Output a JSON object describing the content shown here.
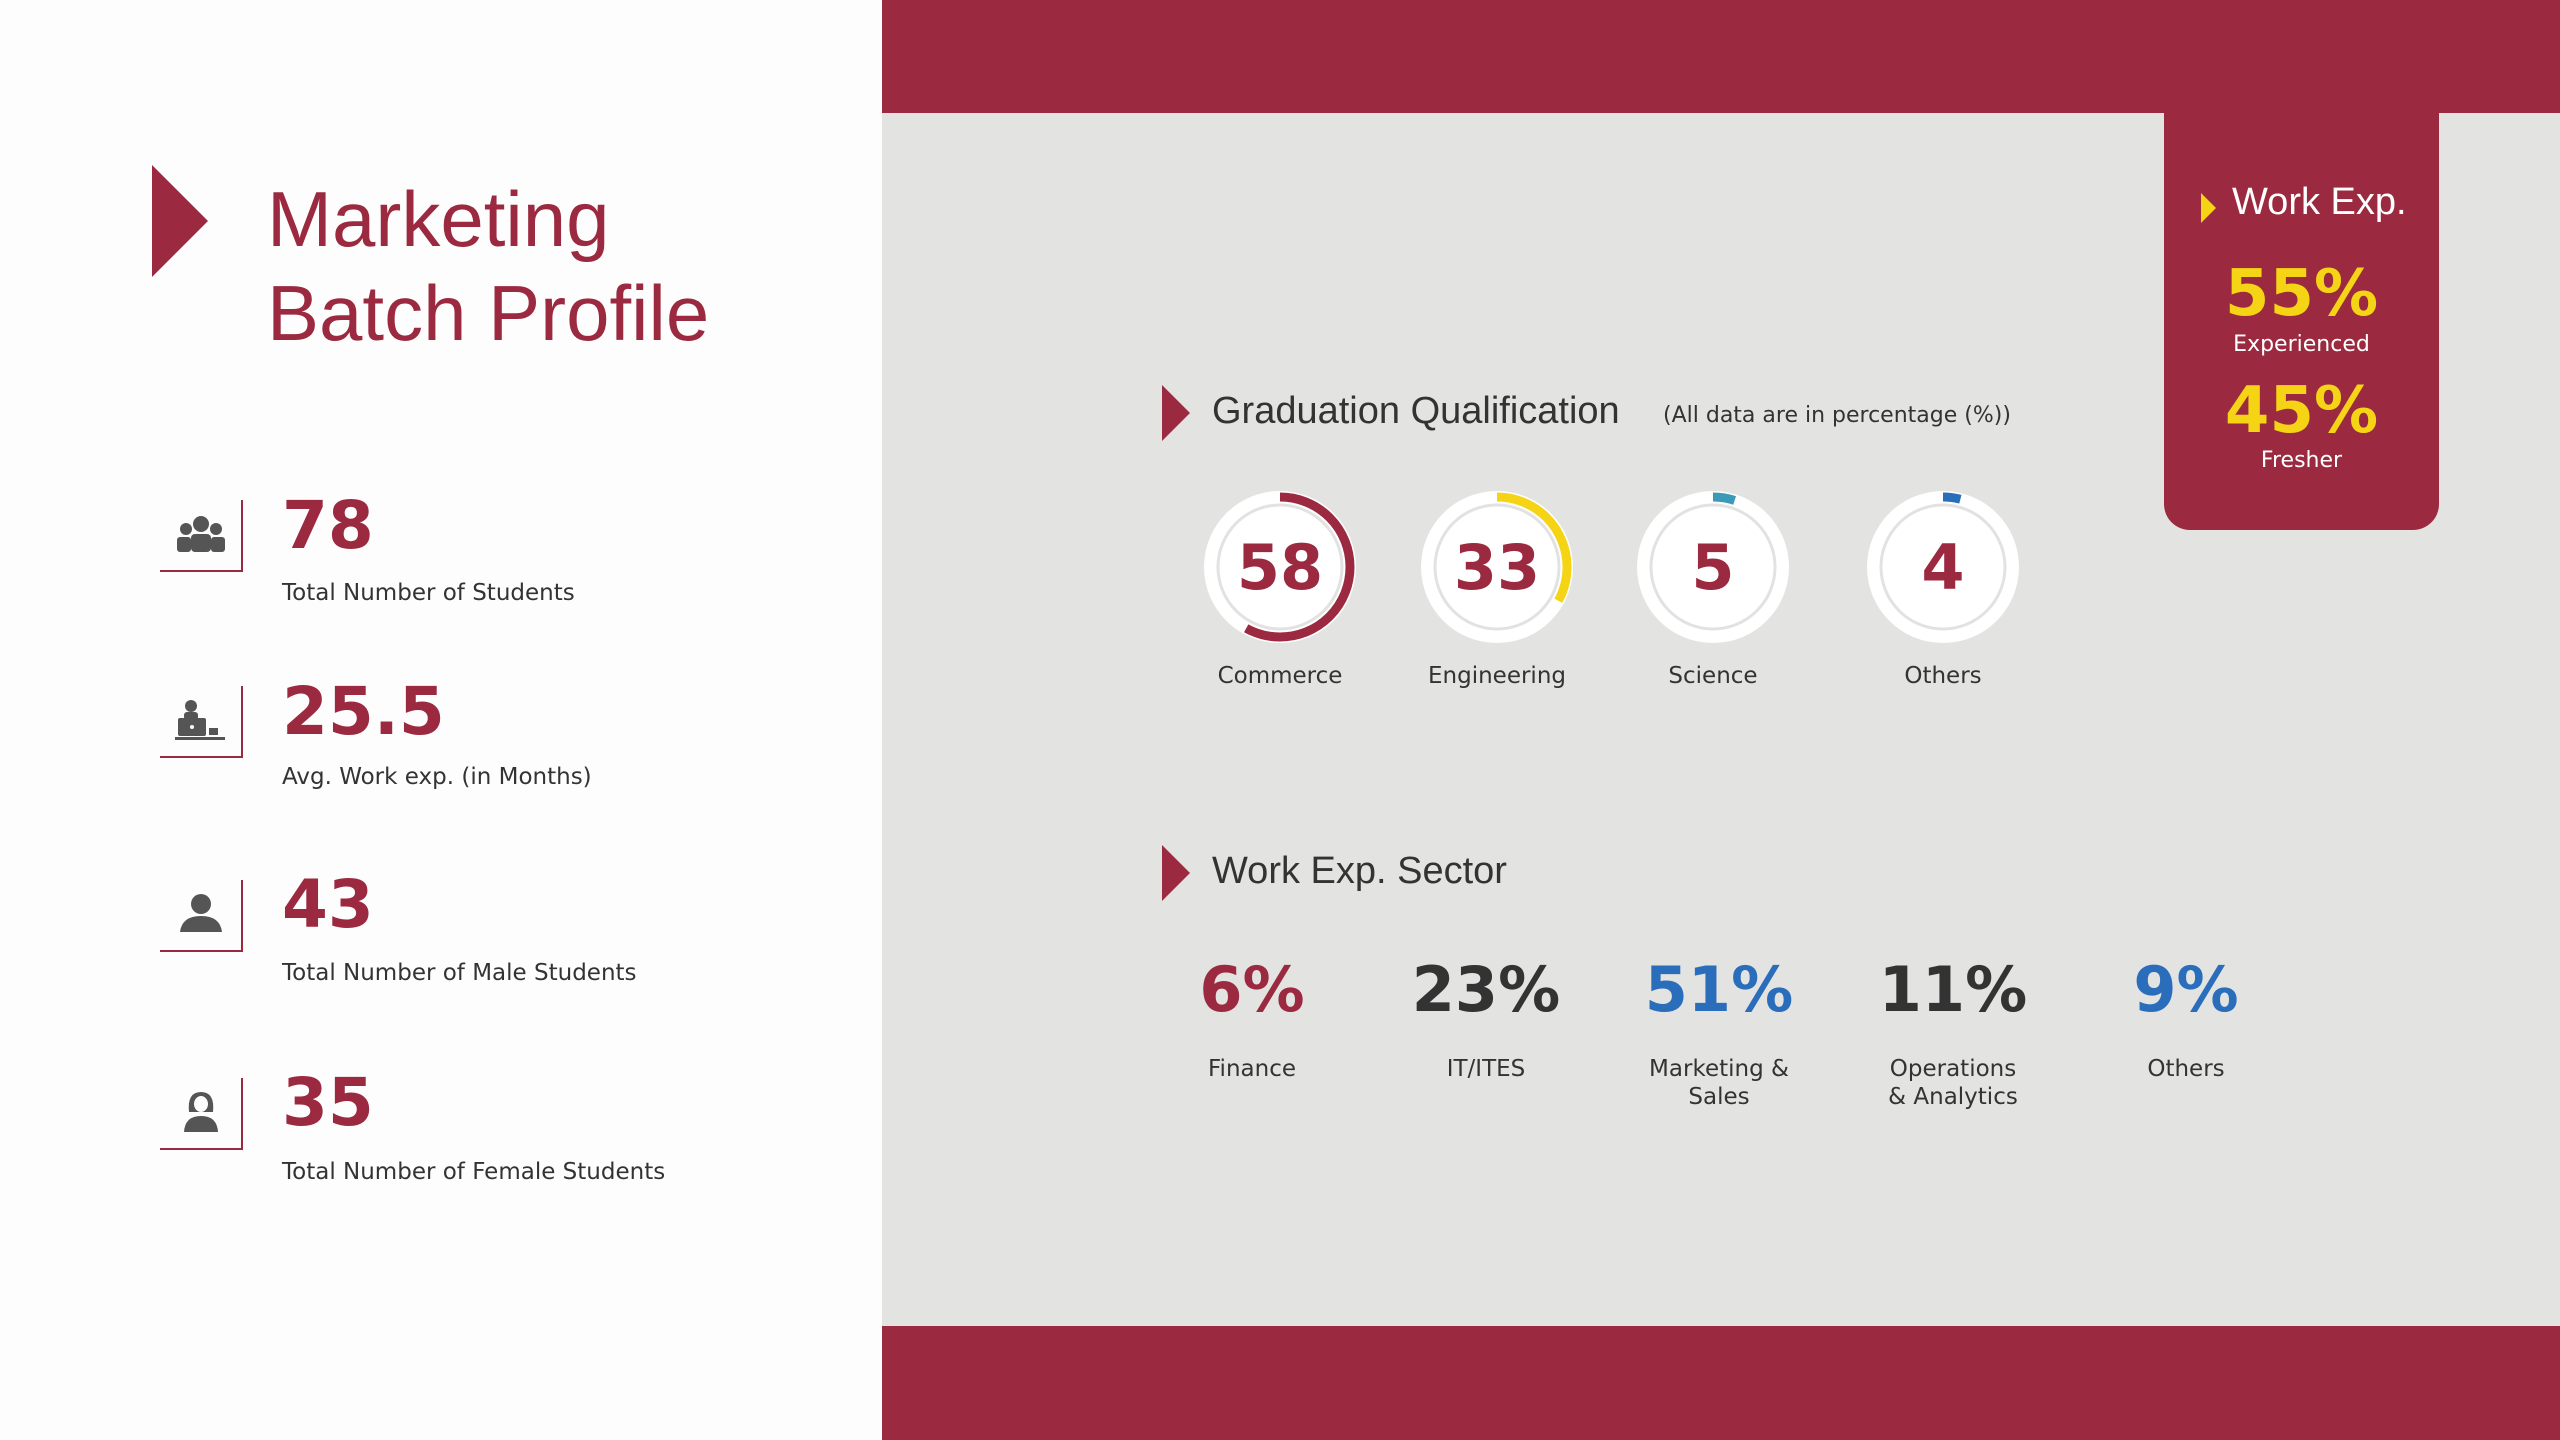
{
  "title": {
    "line1": "Marketing",
    "line2": "Batch Profile"
  },
  "stats": [
    {
      "icon": "group-icon",
      "value": "78",
      "label": "Total Number of Students"
    },
    {
      "icon": "person-laptop-icon",
      "value": "25.5",
      "label": "Avg. Work exp. (in Months)"
    },
    {
      "icon": "male-user-icon",
      "value": "43",
      "label": "Total Number of Male Students"
    },
    {
      "icon": "female-user-icon",
      "value": "35",
      "label": "Total Number of Female Students"
    }
  ],
  "graduation": {
    "heading": "Graduation Qualification",
    "note": "(All data are in percentage (%))",
    "items": [
      {
        "value": "58",
        "percent": 58,
        "label": "Commerce",
        "color": "#9b2a40"
      },
      {
        "value": "33",
        "percent": 33,
        "label": "Engineering",
        "color": "#f5d416"
      },
      {
        "value": "5",
        "percent": 5,
        "label": "Science",
        "color": "#3a9ab8"
      },
      {
        "value": "4",
        "percent": 4,
        "label": "Others",
        "color": "#2a6ebb"
      }
    ]
  },
  "sector": {
    "heading": "Work Exp. Sector",
    "items": [
      {
        "value": "6%",
        "label": "Finance",
        "color": "#9b2a40"
      },
      {
        "value": "23%",
        "label": "IT/ITES",
        "color": "#333333"
      },
      {
        "value": "51%",
        "label": "Marketing & Sales",
        "color": "#2a6ebb"
      },
      {
        "value": "11%",
        "label": "Operations & Analytics",
        "color": "#333333"
      },
      {
        "value": "9%",
        "label": "Others",
        "color": "#2a6ebb"
      }
    ]
  },
  "work_exp": {
    "heading": "Work Exp.",
    "experienced_value": "55%",
    "experienced_label": "Experienced",
    "fresher_value": "45%",
    "fresher_label": "Fresher"
  },
  "colors": {
    "brand": "#9b2a40",
    "accent": "#f5d416",
    "blue": "#2a6ebb"
  }
}
